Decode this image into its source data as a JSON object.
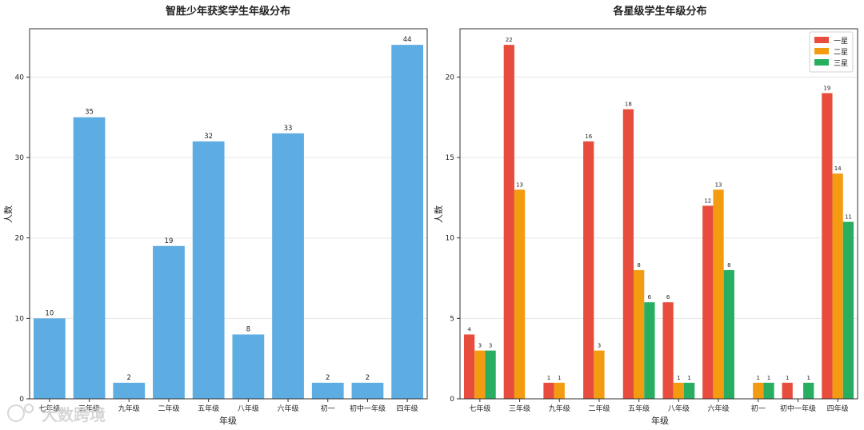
{
  "chart_data": [
    {
      "type": "bar",
      "title": "智胜少年获奖学生年级分布",
      "xlabel": "年级",
      "ylabel": "人数",
      "ylim": [
        0,
        46
      ],
      "yticks": [
        0,
        10,
        20,
        30,
        40
      ],
      "grid": "horizontal",
      "categories": [
        "七年级",
        "三年级",
        "九年级",
        "二年级",
        "五年级",
        "八年级",
        "六年级",
        "初一",
        "初中一年级",
        "四年级"
      ],
      "series": [
        {
          "values": [
            10,
            35,
            2,
            19,
            32,
            8,
            33,
            2,
            2,
            44
          ],
          "color": "#5DADE2"
        }
      ]
    },
    {
      "type": "bar",
      "title": "各星级学生年级分布",
      "xlabel": "年级",
      "ylabel": "人数",
      "ylim": [
        0,
        23
      ],
      "yticks": [
        0,
        5,
        10,
        15,
        20
      ],
      "grid": "horizontal",
      "legend_position": "top-right",
      "categories": [
        "七年级",
        "三年级",
        "九年级",
        "二年级",
        "五年级",
        "八年级",
        "六年级",
        "初一",
        "初中一年级",
        "四年级"
      ],
      "series": [
        {
          "name": "一星",
          "values": [
            4,
            22,
            1,
            16,
            18,
            6,
            12,
            0,
            1,
            19
          ],
          "color": "#E74C3C"
        },
        {
          "name": "二星",
          "values": [
            3,
            13,
            1,
            3,
            8,
            1,
            13,
            1,
            0,
            14
          ],
          "color": "#F39C12"
        },
        {
          "name": "三星",
          "values": [
            3,
            0,
            0,
            0,
            6,
            1,
            8,
            1,
            1,
            11
          ],
          "color": "#27AE60"
        }
      ]
    }
  ],
  "watermark": "大数跨境"
}
